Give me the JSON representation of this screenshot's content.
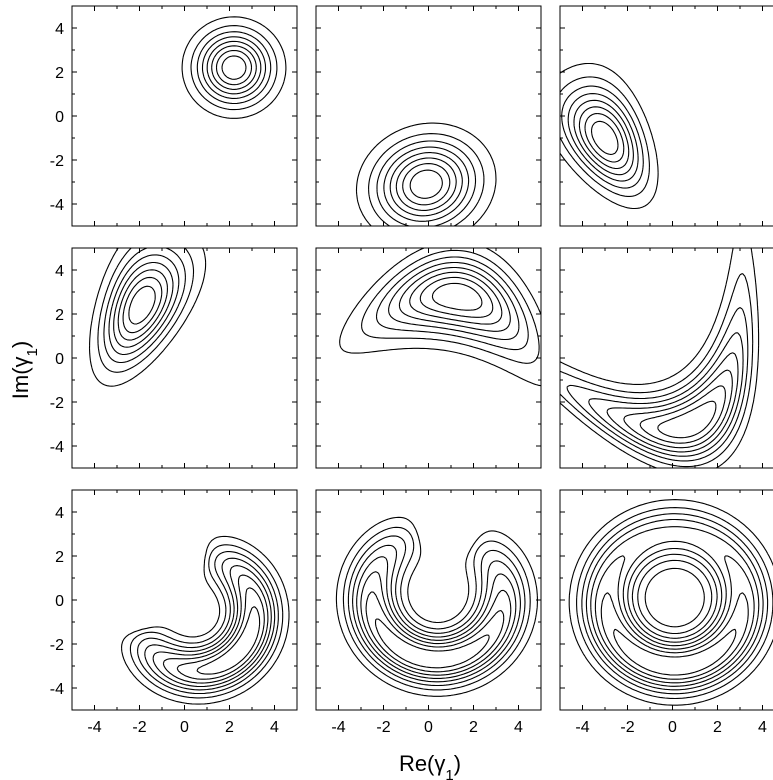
{
  "chart_data": {
    "type": "contour",
    "layout": {
      "rows": 3,
      "cols": 3
    },
    "xlabel": "Re(γ",
    "xlabel_sub": "1",
    "xlabel_close": ")",
    "ylabel": "Im(γ",
    "ylabel_sub": "1",
    "ylabel_close": ")",
    "xlim": [
      -5,
      5
    ],
    "ylim": [
      -5,
      5
    ],
    "xticks": [
      -4,
      -2,
      0,
      2,
      4
    ],
    "yticks": [
      -4,
      -2,
      0,
      2,
      4
    ],
    "x_tick_labels": [
      "-4",
      "-2",
      "0",
      "2",
      "4"
    ],
    "y_tick_labels": [
      "-4",
      "-2",
      "0",
      "2",
      "4"
    ],
    "grid": false,
    "contour_levels": 8,
    "panels": [
      {
        "row": 0,
        "col": 0,
        "shape": "blob",
        "center": [
          2.2,
          2.2
        ],
        "sx": 1.1,
        "sy": 1.1,
        "rot": 0,
        "bend": 0
      },
      {
        "row": 0,
        "col": 1,
        "shape": "blob",
        "center": [
          -0.1,
          -3.1
        ],
        "sx": 1.5,
        "sy": 1.3,
        "rot": 20,
        "bend": 0
      },
      {
        "row": 0,
        "col": 2,
        "shape": "blob",
        "center": [
          -3.0,
          -1.0
        ],
        "sx": 1.0,
        "sy": 1.7,
        "rot": 30,
        "bend": 0.2
      },
      {
        "row": 1,
        "col": 0,
        "shape": "blob",
        "center": [
          -1.9,
          2.4
        ],
        "sx": 1.0,
        "sy": 1.9,
        "rot": -25,
        "bend": 0.25
      },
      {
        "row": 1,
        "col": 1,
        "shape": "blob",
        "center": [
          1.3,
          2.8
        ],
        "sx": 2.3,
        "sy": 1.2,
        "rot": -10,
        "bend": -0.12
      },
      {
        "row": 1,
        "col": 2,
        "shape": "blob",
        "center": [
          0.8,
          -3.0
        ],
        "sx": 2.9,
        "sy": 1.1,
        "rot": 25,
        "bend": 0.2
      },
      {
        "row": 2,
        "col": 0,
        "shape": "crescent",
        "center": [
          0.5,
          -0.6
        ],
        "radius": 2.6,
        "width": 0.75,
        "start": -165,
        "end": 120
      },
      {
        "row": 2,
        "col": 1,
        "shape": "crescent",
        "center": [
          0.4,
          0.2
        ],
        "radius": 2.9,
        "width": 0.8,
        "start": -255,
        "end": 105
      },
      {
        "row": 2,
        "col": 2,
        "shape": "ring",
        "center": [
          0.1,
          0.0
        ],
        "radius": 3.0,
        "width": 0.85
      }
    ]
  }
}
